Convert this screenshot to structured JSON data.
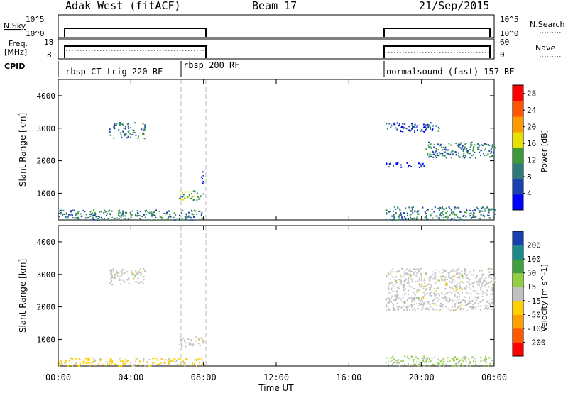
{
  "header": {
    "station": "Adak West (fitACF)",
    "beam": "Beam 17",
    "date": "21/Sep/2015"
  },
  "panels": {
    "nsky": {
      "left_label": "N.Sky",
      "tick_top": "10^5",
      "tick_bottom": "10^0",
      "right_label": "N.Search",
      "right_tick_top": "10^5",
      "right_tick_bottom": "10^0"
    },
    "freq": {
      "left_label_1": "Freq.",
      "left_label_2": "[MHz]",
      "tick_top": "18",
      "tick_bottom": "8",
      "right_label": "Nave",
      "right_tick_top": "60",
      "right_tick_bottom": "0"
    },
    "cpid": {
      "label": "CPID",
      "modes": [
        "rbsp CT-trig 220 RF",
        "rbsp 200 RF",
        "normalsound (fast) 157 RF"
      ]
    }
  },
  "colors": {
    "power_scale": [
      "#0000ff",
      "#1a3fb0",
      "#2e7a7a",
      "#3c9a3c",
      "#e8e000",
      "#ff9900",
      "#ff5500",
      "#ff0000"
    ],
    "velocity_scale": [
      "#ff0000",
      "#ff5a00",
      "#ffa000",
      "#ffd000",
      "#c0c0c0",
      "#90d040",
      "#40a040",
      "#1a8a8a",
      "#1a3fb0"
    ]
  },
  "chart_data": [
    {
      "type": "heatmap",
      "name": "power",
      "ylabel": "Slant Range [km]",
      "yticks": [
        "1000",
        "2000",
        "3000",
        "4000"
      ],
      "xlim": [
        0,
        24
      ],
      "ylim": [
        180,
        4500
      ],
      "colorbar": {
        "label": "Power [dB]",
        "ticks": [
          "4",
          "8",
          "12",
          "16",
          "20",
          "24",
          "28"
        ],
        "range": [
          0,
          30
        ]
      },
      "echo_regions": [
        {
          "t_start": 0.0,
          "t_end": 8.0,
          "r_start": 180,
          "r_end": 500,
          "value": 10
        },
        {
          "t_start": 2.8,
          "t_end": 4.8,
          "r_start": 2700,
          "r_end": 3200,
          "value": 9
        },
        {
          "t_start": 6.6,
          "t_end": 8.0,
          "r_start": 800,
          "r_end": 1100,
          "value": 14
        },
        {
          "t_start": 7.8,
          "t_end": 8.0,
          "r_start": 1300,
          "r_end": 1700,
          "value": 6
        },
        {
          "t_start": 18.0,
          "t_end": 24.0,
          "r_start": 180,
          "r_end": 600,
          "value": 10
        },
        {
          "t_start": 18.0,
          "t_end": 21.0,
          "r_start": 2900,
          "r_end": 3200,
          "value": 6
        },
        {
          "t_start": 20.2,
          "t_end": 24.0,
          "r_start": 2100,
          "r_end": 2600,
          "value": 10
        },
        {
          "t_start": 18.0,
          "t_end": 20.2,
          "r_start": 1800,
          "r_end": 1950,
          "value": 5
        }
      ]
    },
    {
      "type": "heatmap",
      "name": "velocity",
      "xlabel": "Time UT",
      "ylabel": "Slant Range [km]",
      "xticks": [
        "00:00",
        "04:00",
        "08:00",
        "12:00",
        "16:00",
        "20:00",
        "00:00"
      ],
      "yticks": [
        "1000",
        "2000",
        "3000",
        "4000"
      ],
      "xlim": [
        0,
        24
      ],
      "ylim": [
        180,
        4500
      ],
      "colorbar": {
        "label": "Velocity [m s^-1]",
        "ticks": [
          "-200",
          "-100",
          "-50",
          "-15",
          "15",
          "50",
          "100",
          "200"
        ],
        "range": [
          -250,
          250
        ]
      },
      "echo_regions": [
        {
          "t_start": 0.0,
          "t_end": 8.0,
          "r_start": 180,
          "r_end": 450,
          "value": -40
        },
        {
          "t_start": 2.8,
          "t_end": 4.8,
          "r_start": 2700,
          "r_end": 3200,
          "value": 0
        },
        {
          "t_start": 6.6,
          "t_end": 8.0,
          "r_start": 800,
          "r_end": 1100,
          "value": 0
        },
        {
          "t_start": 7.7,
          "t_end": 8.0,
          "r_start": 900,
          "r_end": 1100,
          "value": -40
        },
        {
          "t_start": 18.0,
          "t_end": 24.0,
          "r_start": 180,
          "r_end": 500,
          "value": 40
        },
        {
          "t_start": 18.0,
          "t_end": 24.0,
          "r_start": 1900,
          "r_end": 3200,
          "value": 0
        }
      ]
    }
  ]
}
